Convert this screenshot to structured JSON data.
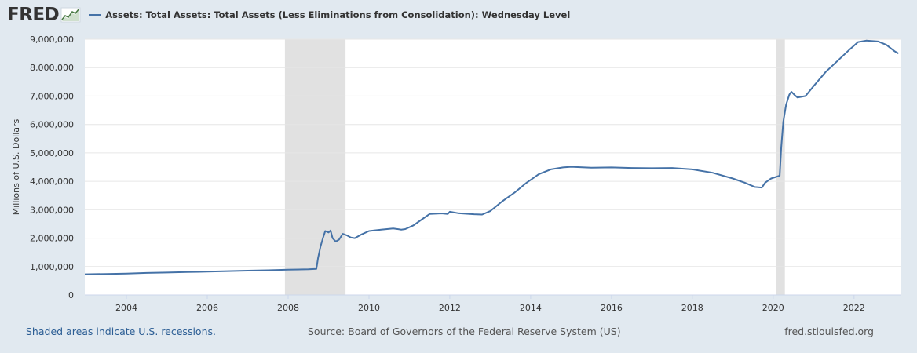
{
  "brand": {
    "logo": "FRED",
    "logo_mark": "chart-trend-icon"
  },
  "colors": {
    "series": "#4572a7",
    "recession": "#e1e1e1",
    "plot_bg": "#ffffff",
    "page_bg": "#e1e9f0",
    "link": "#2b5d94"
  },
  "chart_data": {
    "type": "line",
    "title": "",
    "ylabel": "Millions of U.S. Dollars",
    "xlabel": "",
    "xlim": [
      2002.97,
      2023.15
    ],
    "ylim": [
      0,
      9000000
    ],
    "x_ticks": [
      "2004",
      "2006",
      "2008",
      "2010",
      "2012",
      "2014",
      "2016",
      "2018",
      "2020",
      "2022"
    ],
    "y_ticks": [
      "0",
      "1,000,000",
      "2,000,000",
      "3,000,000",
      "4,000,000",
      "5,000,000",
      "6,000,000",
      "7,000,000",
      "8,000,000",
      "9,000,000"
    ],
    "grid": "horizontal",
    "legend": "top-left",
    "recessions": [
      [
        2007.92,
        2009.42
      ],
      [
        2020.08,
        2020.29
      ]
    ],
    "series": [
      {
        "name": "Assets: Total Assets: Total Assets (Less Eliminations from Consolidation): Wednesday Level",
        "points": [
          [
            2002.97,
            730000
          ],
          [
            2003.5,
            740000
          ],
          [
            2004.0,
            755000
          ],
          [
            2004.5,
            775000
          ],
          [
            2005.0,
            790000
          ],
          [
            2005.5,
            805000
          ],
          [
            2006.0,
            820000
          ],
          [
            2006.5,
            840000
          ],
          [
            2007.0,
            855000
          ],
          [
            2007.5,
            870000
          ],
          [
            2008.0,
            890000
          ],
          [
            2008.5,
            905000
          ],
          [
            2008.7,
            920000
          ],
          [
            2008.74,
            1300000
          ],
          [
            2008.8,
            1700000
          ],
          [
            2008.86,
            2000000
          ],
          [
            2008.92,
            2250000
          ],
          [
            2009.0,
            2200000
          ],
          [
            2009.05,
            2270000
          ],
          [
            2009.1,
            2000000
          ],
          [
            2009.18,
            1880000
          ],
          [
            2009.26,
            1950000
          ],
          [
            2009.35,
            2150000
          ],
          [
            2009.45,
            2100000
          ],
          [
            2009.55,
            2020000
          ],
          [
            2009.65,
            2000000
          ],
          [
            2009.8,
            2120000
          ],
          [
            2010.0,
            2250000
          ],
          [
            2010.3,
            2300000
          ],
          [
            2010.6,
            2340000
          ],
          [
            2010.8,
            2300000
          ],
          [
            2010.9,
            2320000
          ],
          [
            2011.1,
            2450000
          ],
          [
            2011.3,
            2650000
          ],
          [
            2011.5,
            2850000
          ],
          [
            2011.8,
            2870000
          ],
          [
            2011.95,
            2850000
          ],
          [
            2012.0,
            2930000
          ],
          [
            2012.2,
            2880000
          ],
          [
            2012.6,
            2840000
          ],
          [
            2012.8,
            2830000
          ],
          [
            2013.0,
            2950000
          ],
          [
            2013.3,
            3300000
          ],
          [
            2013.6,
            3600000
          ],
          [
            2013.9,
            3950000
          ],
          [
            2014.2,
            4250000
          ],
          [
            2014.5,
            4420000
          ],
          [
            2014.8,
            4490000
          ],
          [
            2015.0,
            4510000
          ],
          [
            2015.5,
            4480000
          ],
          [
            2016.0,
            4490000
          ],
          [
            2016.5,
            4470000
          ],
          [
            2017.0,
            4460000
          ],
          [
            2017.5,
            4470000
          ],
          [
            2018.0,
            4420000
          ],
          [
            2018.5,
            4300000
          ],
          [
            2019.0,
            4100000
          ],
          [
            2019.3,
            3950000
          ],
          [
            2019.55,
            3800000
          ],
          [
            2019.72,
            3780000
          ],
          [
            2019.8,
            3950000
          ],
          [
            2019.95,
            4100000
          ],
          [
            2020.1,
            4170000
          ],
          [
            2020.16,
            4200000
          ],
          [
            2020.2,
            5200000
          ],
          [
            2020.25,
            6100000
          ],
          [
            2020.32,
            6700000
          ],
          [
            2020.4,
            7050000
          ],
          [
            2020.45,
            7150000
          ],
          [
            2020.52,
            7050000
          ],
          [
            2020.6,
            6950000
          ],
          [
            2020.8,
            7000000
          ],
          [
            2021.0,
            7350000
          ],
          [
            2021.3,
            7850000
          ],
          [
            2021.6,
            8250000
          ],
          [
            2021.9,
            8650000
          ],
          [
            2022.1,
            8900000
          ],
          [
            2022.3,
            8950000
          ],
          [
            2022.6,
            8920000
          ],
          [
            2022.8,
            8800000
          ],
          [
            2023.0,
            8580000
          ],
          [
            2023.1,
            8500000
          ]
        ]
      }
    ]
  },
  "footer": {
    "note": "Shaded areas indicate U.S. recessions.",
    "source": "Source: Board of Governors of the Federal Reserve System (US)",
    "url": "fred.stlouisfed.org"
  }
}
